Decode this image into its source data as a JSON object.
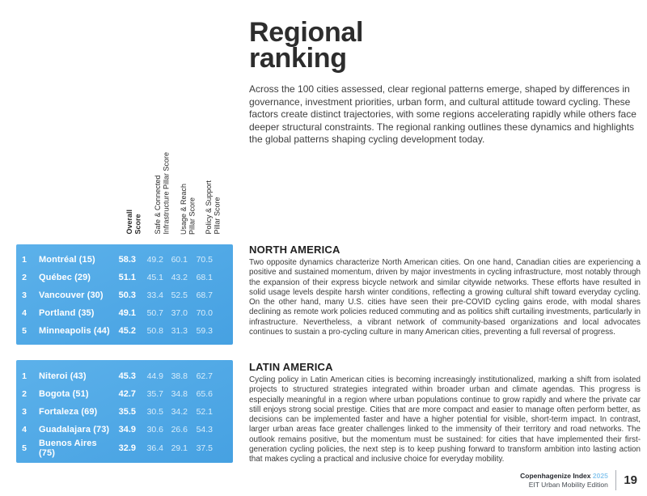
{
  "header": {
    "title": "Regional\nranking",
    "intro": "Across the 100 cities assessed, clear regional patterns emerge, shaped by differences in governance, investment priorities, urban form, and cultural attitude toward cycling. These factors create distinct trajectories, with some regions accelerating rapidly while others face deeper structural constraints. The regional ranking outlines these dynamics and highlights the global patterns shaping cycling development today."
  },
  "table_columns": [
    "Overall\nScore",
    "Safe & Connected\nInfrastructure Pillar Score",
    "Usage & Reach\nPillar Score",
    "Policy & Support\nPillar Score"
  ],
  "sections": [
    {
      "heading": "NORTH AMERICA",
      "body": "Two opposite dynamics characterize North American cities. On one hand, Canadian cities are experiencing a positive and sustained momentum, driven by major investments in cycling infrastructure, most notably through the expansion of their express bicycle network and similar citywide networks. These efforts have resulted in solid usage levels despite harsh winter conditions, reflecting a growing cultural shift toward everyday cycling. On the other hand, many U.S. cities have seen their pre-COVID cycling gains erode, with modal shares declining as remote work policies reduced commuting and as politics shift curtailing investments, particularly in infrastructure. Nevertheless, a vibrant network of community-based organizations and local advocates continues to sustain a pro-cycling culture in many American cities, preventing a full reversal of progress.",
      "rows": [
        {
          "rank": "1",
          "city": "Montréal (15)",
          "overall": "58.3",
          "infra": "49.2",
          "usage": "60.1",
          "policy": "70.5"
        },
        {
          "rank": "2",
          "city": "Québec (29)",
          "overall": "51.1",
          "infra": "45.1",
          "usage": "43.2",
          "policy": "68.1"
        },
        {
          "rank": "3",
          "city": "Vancouver (30)",
          "overall": "50.3",
          "infra": "33.4",
          "usage": "52.5",
          "policy": "68.7"
        },
        {
          "rank": "4",
          "city": "Portland (35)",
          "overall": "49.1",
          "infra": "50.7",
          "usage": "37.0",
          "policy": "70.0"
        },
        {
          "rank": "5",
          "city": "Minneapolis (44)",
          "overall": "45.2",
          "infra": "50.8",
          "usage": "31.3",
          "policy": "59.3"
        }
      ]
    },
    {
      "heading": "LATIN AMERICA",
      "body": "Cycling policy in Latin American cities is becoming increasingly institutionalized, marking a shift from isolated projects to structured strategies integrated within broader urban and climate agendas. This progress is especially meaningful in a region where urban populations continue to grow rapidly and where the private car still enjoys strong social prestige. Cities that are more compact and easier to manage often perform better, as decisions can be implemented faster and have a higher potential for visible, short-term impact. In contrast, larger urban areas face greater challenges linked to the immensity of their territory and road networks. The outlook remains positive, but the momentum must be sustained: for cities that have implemented their first-generation cycling policies, the next step is to keep pushing forward to transform ambition into lasting action that makes cycling a practical and inclusive choice for everyday mobility.",
      "rows": [
        {
          "rank": "1",
          "city": "Niteroi (43)",
          "overall": "45.3",
          "infra": "44.9",
          "usage": "38.8",
          "policy": "62.7"
        },
        {
          "rank": "2",
          "city": "Bogota (51)",
          "overall": "42.7",
          "infra": "35.7",
          "usage": "34.8",
          "policy": "65.6"
        },
        {
          "rank": "3",
          "city": "Fortaleza (69)",
          "overall": "35.5",
          "infra": "30.5",
          "usage": "34.2",
          "policy": "52.1"
        },
        {
          "rank": "4",
          "city": "Guadalajara (73)",
          "overall": "34.9",
          "infra": "30.6",
          "usage": "26.6",
          "policy": "54.3"
        },
        {
          "rank": "5",
          "city": "Buenos Aires (75)",
          "overall": "32.9",
          "infra": "36.4",
          "usage": "29.1",
          "policy": "37.5"
        }
      ]
    }
  ],
  "footer": {
    "brand": "Copenhagenize Index",
    "year": "2025",
    "edition": "EIT Urban Mobility Edition",
    "page_number": "19"
  },
  "colors": {
    "table_blue_top": "#5cb1ea",
    "table_blue_bottom": "#46a1e2",
    "pale_score_text": "#d8edfb",
    "footer_year_blue": "#8ec9ef",
    "heading_dark": "#2d2d2d"
  }
}
